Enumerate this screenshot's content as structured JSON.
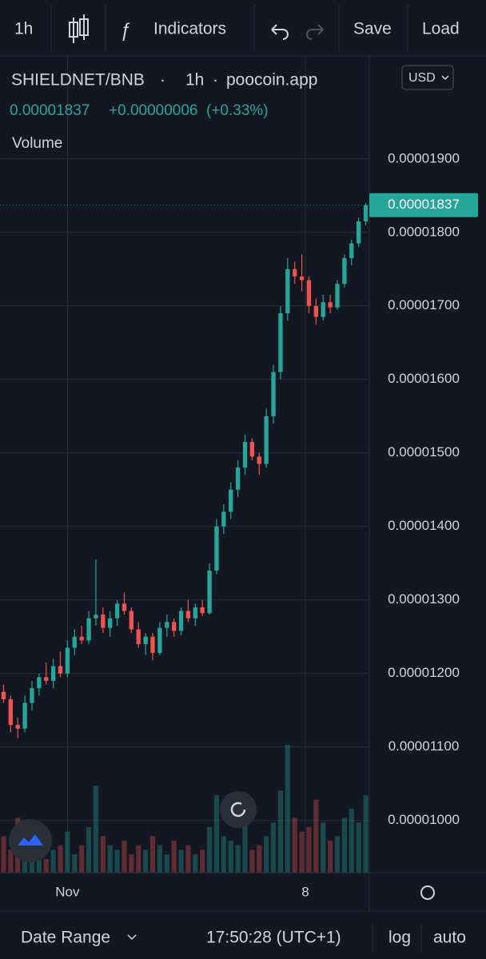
{
  "toolbar": {
    "interval": "1h",
    "indicators": "Indicators",
    "save": "Save",
    "load": "Load"
  },
  "chart_data": {
    "type": "candlestick",
    "symbol": "SHIELDNET/BNB",
    "interval": "1h",
    "source": "poocoin.app",
    "last_price": "0.00001837",
    "change": "+0.00000006",
    "change_pct": "(+0.33%)",
    "volume_label": "Volume",
    "currency": "USD",
    "up_color": "#26a69a",
    "down_color": "#ef5350",
    "open": [
      1.175e-05,
      1.165e-05,
      1.13e-05,
      1.125e-05,
      1.16e-05,
      1.18e-05,
      1.195e-05,
      1.19e-05,
      1.21e-05,
      1.2e-05,
      1.235e-05,
      1.25e-05,
      1.245e-05,
      1.275e-05,
      1.28e-05,
      1.262e-05,
      1.275e-05,
      1.295e-05,
      1.285e-05,
      1.26e-05,
      1.24e-05,
      1.25e-05,
      1.228e-05,
      1.262e-05,
      1.27e-05,
      1.258e-05,
      1.285e-05,
      1.275e-05,
      1.29e-05,
      1.282e-05,
      1.34e-05,
      1.4e-05,
      1.42e-05,
      1.45e-05,
      1.48e-05,
      1.515e-05,
      1.495e-05,
      1.485e-05,
      1.55e-05,
      1.61e-05,
      1.69e-05,
      1.75e-05,
      1.74e-05,
      1.735e-05,
      1.7e-05,
      1.685e-05,
      1.705e-05,
      1.698e-05,
      1.73e-05,
      1.765e-05,
      1.785e-05,
      1.815e-05
    ],
    "high": [
      1.185e-05,
      1.17e-05,
      1.14e-05,
      1.17e-05,
      1.19e-05,
      1.2e-05,
      1.215e-05,
      1.22e-05,
      1.23e-05,
      1.245e-05,
      1.26e-05,
      1.265e-05,
      1.285e-05,
      1.355e-05,
      1.29e-05,
      1.285e-05,
      1.3e-05,
      1.31e-05,
      1.29e-05,
      1.27e-05,
      1.255e-05,
      1.255e-05,
      1.27e-05,
      1.28e-05,
      1.275e-05,
      1.29e-05,
      1.3e-05,
      1.295e-05,
      1.3e-05,
      1.35e-05,
      1.41e-05,
      1.43e-05,
      1.46e-05,
      1.49e-05,
      1.525e-05,
      1.52e-05,
      1.5e-05,
      1.56e-05,
      1.62e-05,
      1.7e-05,
      1.765e-05,
      1.76e-05,
      1.77e-05,
      1.74e-05,
      1.71e-05,
      1.715e-05,
      1.715e-05,
      1.735e-05,
      1.77e-05,
      1.79e-05,
      1.82e-05,
      1.84e-05
    ],
    "low": [
      1.16e-05,
      1.12e-05,
      1.112e-05,
      1.12e-05,
      1.15e-05,
      1.17e-05,
      1.185e-05,
      1.18e-05,
      1.195e-05,
      1.195e-05,
      1.225e-05,
      1.24e-05,
      1.24e-05,
      1.265e-05,
      1.255e-05,
      1.25e-05,
      1.265e-05,
      1.28e-05,
      1.255e-05,
      1.235e-05,
      1.225e-05,
      1.218e-05,
      1.225e-05,
      1.25e-05,
      1.25e-05,
      1.252e-05,
      1.27e-05,
      1.265e-05,
      1.278e-05,
      1.28e-05,
      1.335e-05,
      1.39e-05,
      1.41e-05,
      1.44e-05,
      1.47e-05,
      1.49e-05,
      1.47e-05,
      1.48e-05,
      1.54e-05,
      1.6e-05,
      1.68e-05,
      1.73e-05,
      1.72e-05,
      1.69e-05,
      1.675e-05,
      1.68e-05,
      1.69e-05,
      1.695e-05,
      1.725e-05,
      1.755e-05,
      1.78e-05,
      1.81e-05
    ],
    "close": [
      1.165e-05,
      1.13e-05,
      1.125e-05,
      1.16e-05,
      1.18e-05,
      1.195e-05,
      1.19e-05,
      1.21e-05,
      1.2e-05,
      1.235e-05,
      1.25e-05,
      1.245e-05,
      1.275e-05,
      1.28e-05,
      1.262e-05,
      1.275e-05,
      1.295e-05,
      1.285e-05,
      1.26e-05,
      1.24e-05,
      1.25e-05,
      1.228e-05,
      1.262e-05,
      1.27e-05,
      1.258e-05,
      1.285e-05,
      1.275e-05,
      1.29e-05,
      1.282e-05,
      1.34e-05,
      1.4e-05,
      1.42e-05,
      1.45e-05,
      1.48e-05,
      1.515e-05,
      1.495e-05,
      1.485e-05,
      1.55e-05,
      1.61e-05,
      1.69e-05,
      1.75e-05,
      1.74e-05,
      1.735e-05,
      1.7e-05,
      1.685e-05,
      1.705e-05,
      1.698e-05,
      1.73e-05,
      1.765e-05,
      1.785e-05,
      1.815e-05,
      1.837e-05
    ],
    "volume": [
      40,
      25,
      60,
      30,
      20,
      35,
      15,
      25,
      30,
      45,
      20,
      30,
      50,
      95,
      40,
      30,
      25,
      35,
      20,
      30,
      25,
      40,
      30,
      20,
      35,
      25,
      30,
      20,
      25,
      50,
      85,
      40,
      35,
      30,
      60,
      25,
      30,
      40,
      55,
      90,
      140,
      60,
      45,
      50,
      80,
      55,
      35,
      40,
      60,
      70,
      55,
      85
    ],
    "xlim": [
      -0.5,
      51.5
    ],
    "xticks": [
      {
        "value": 9,
        "label": "Nov"
      },
      {
        "value": 42.5,
        "label": "8"
      }
    ],
    "ylim": [
      9.29e-06,
      2.04e-05
    ],
    "yticks": [
      {
        "value": 1e-05,
        "label": "0.00001000"
      },
      {
        "value": 1.1e-05,
        "label": "0.00001100"
      },
      {
        "value": 1.2e-05,
        "label": "0.00001200"
      },
      {
        "value": 1.3e-05,
        "label": "0.00001300"
      },
      {
        "value": 1.4e-05,
        "label": "0.00001400"
      },
      {
        "value": 1.5e-05,
        "label": "0.00001500"
      },
      {
        "value": 1.6e-05,
        "label": "0.00001600"
      },
      {
        "value": 1.7e-05,
        "label": "0.00001700"
      },
      {
        "value": 1.8e-05,
        "label": "0.00001800"
      },
      {
        "value": 1.9e-05,
        "label": "0.00001900"
      }
    ],
    "grid": true
  },
  "footer": {
    "date_range": "Date Range",
    "time": "17:50:28 (UTC+1)",
    "log": "log",
    "auto": "auto"
  }
}
